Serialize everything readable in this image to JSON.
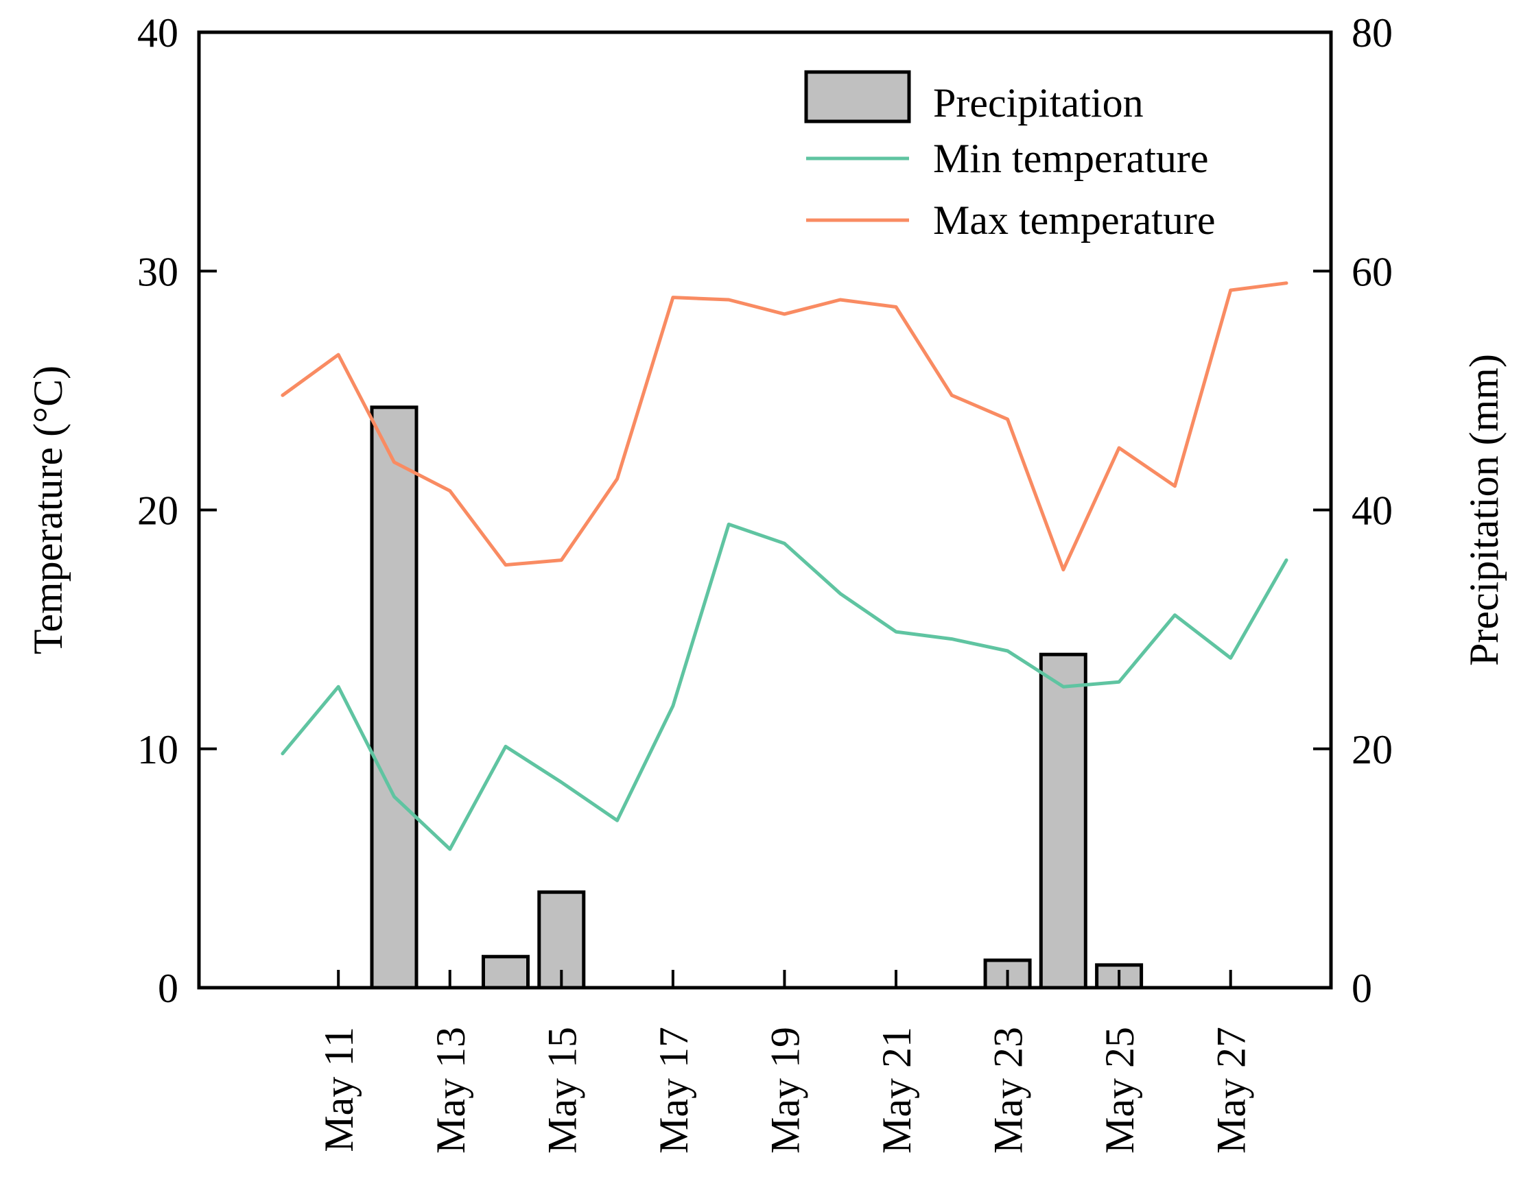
{
  "chart_data": {
    "type": "bar+line",
    "x": [
      10,
      11,
      12,
      13,
      14,
      15,
      16,
      17,
      18,
      19,
      20,
      21,
      22,
      23,
      24,
      25,
      26,
      27,
      28
    ],
    "x_tick_values": [
      11,
      13,
      15,
      17,
      19,
      21,
      23,
      25,
      27
    ],
    "x_tick_labels": [
      "May 11",
      "May 13",
      "May 15",
      "May 17",
      "May 19",
      "May 21",
      "May 23",
      "May 25",
      "May 27"
    ],
    "xlim": [
      8.5,
      28.8
    ],
    "left_axis": {
      "label": "Temperature (°C)",
      "ylim": [
        0,
        40
      ],
      "ticks": [
        0,
        10,
        20,
        30,
        40
      ],
      "tick_labels": [
        "0",
        "10",
        "20",
        "30",
        "40"
      ]
    },
    "right_axis": {
      "label": "Precipitation (mm)",
      "ylim": [
        0,
        80
      ],
      "ticks": [
        0,
        20,
        40,
        60,
        80
      ],
      "tick_labels": [
        "0",
        "20",
        "40",
        "60",
        "80"
      ]
    },
    "series": [
      {
        "name": "Precipitation",
        "kind": "bar",
        "axis": "right",
        "color": "#c0c0c0",
        "edge_color": "#000000",
        "points": [
          {
            "x": 12,
            "y": 48.6
          },
          {
            "x": 14,
            "y": 2.6
          },
          {
            "x": 15,
            "y": 8.0
          },
          {
            "x": 23,
            "y": 2.3
          },
          {
            "x": 24,
            "y": 27.9
          },
          {
            "x": 25,
            "y": 1.9
          }
        ]
      },
      {
        "name": "Min temperature",
        "kind": "line",
        "axis": "left",
        "color": "#5fc4a1",
        "values": [
          9.8,
          12.6,
          8.0,
          5.8,
          10.1,
          8.6,
          7.0,
          11.8,
          19.4,
          18.6,
          16.5,
          14.9,
          14.6,
          14.1,
          12.6,
          12.8,
          15.6,
          13.8,
          17.9
        ]
      },
      {
        "name": "Max temperature",
        "kind": "line",
        "axis": "left",
        "color": "#f98b62",
        "values": [
          24.8,
          26.5,
          22.0,
          20.8,
          17.7,
          17.9,
          21.3,
          28.9,
          28.8,
          28.2,
          28.8,
          28.5,
          24.8,
          23.8,
          17.5,
          22.6,
          21.0,
          29.2,
          29.5
        ]
      }
    ],
    "legend": {
      "placement": "top-right",
      "entries": [
        "Precipitation",
        "Min temperature",
        "Max temperature"
      ]
    },
    "grid": false
  }
}
